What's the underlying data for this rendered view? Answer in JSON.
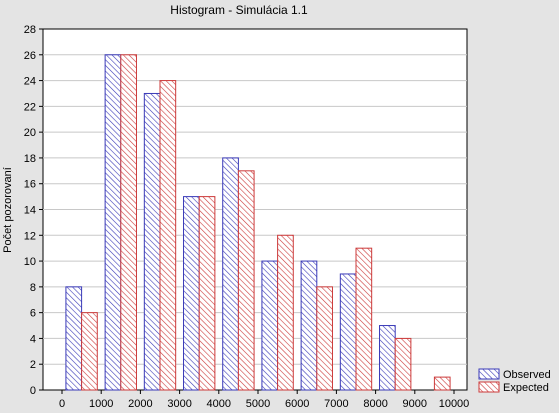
{
  "chart_data": {
    "type": "bar",
    "title": "Histogram - Simulácia 1.1",
    "xlabel": "",
    "ylabel": "Počet pozorovaní",
    "categories": [
      "0-1000",
      "1000-2000",
      "2000-3000",
      "3000-4000",
      "4000-5000",
      "5000-6000",
      "6000-7000",
      "7000-8000",
      "8000-9000",
      "9000-10000"
    ],
    "x_ticks": [
      "0",
      "1000",
      "2000",
      "3000",
      "4000",
      "5000",
      "6000",
      "7000",
      "8000",
      "9000",
      "10000"
    ],
    "series": [
      {
        "name": "Observed",
        "values": [
          8,
          26,
          23,
          15,
          18,
          10,
          10,
          9,
          5,
          0
        ],
        "color": "#3a3ab8"
      },
      {
        "name": "Expected",
        "values": [
          6,
          26,
          24,
          15,
          17,
          12,
          8,
          11,
          4,
          1
        ],
        "color": "#cc3a3a"
      }
    ],
    "ylim": [
      0,
      28
    ],
    "y_ticks": [
      0,
      2,
      4,
      6,
      8,
      10,
      12,
      14,
      16,
      18,
      20,
      22,
      24,
      26,
      28
    ],
    "grid": true,
    "legend_position": "bottom-right",
    "colors": {
      "background": "#e4e4e4",
      "plot_background": "#ffffff",
      "grid": "#c8c8c8"
    }
  }
}
